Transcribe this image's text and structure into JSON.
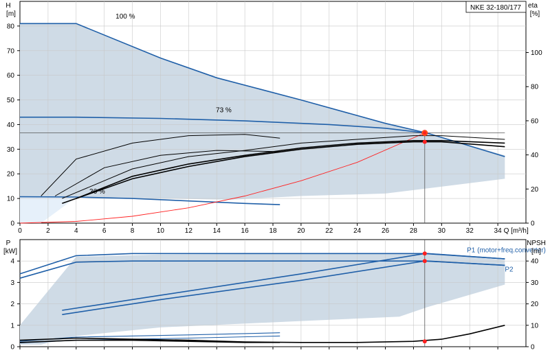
{
  "chart_data": [
    {
      "type": "line",
      "model_label": "NKE 32-180/177",
      "ylabel_left": "H",
      "ylabel_left_unit": "[m]",
      "ylabel_right": "eta",
      "ylabel_right_unit": "[%]",
      "xlabel": "Q [m³/h]",
      "xlim": [
        0,
        36
      ],
      "ylim": [
        0,
        90
      ],
      "x_ticks": [
        0,
        2,
        4,
        6,
        8,
        10,
        12,
        14,
        16,
        18,
        20,
        22,
        24,
        26,
        28,
        30,
        32,
        34
      ],
      "y_ticks": [
        0,
        10,
        20,
        30,
        40,
        50,
        60,
        70,
        80
      ],
      "y2_ticks": [
        0,
        20,
        40,
        60,
        80,
        100
      ],
      "y2_range": [
        0,
        130
      ],
      "grid": true,
      "speed_labels": [
        {
          "text": "100 %",
          "x": 7.5,
          "y": 83
        },
        {
          "text": "73 %",
          "x": 14.5,
          "y": 45
        },
        {
          "text": "36 %",
          "x": 5.5,
          "y": 12
        }
      ],
      "envelope_region": {
        "name": "operating range",
        "x": [
          0,
          4,
          10,
          14,
          20,
          26,
          29,
          34.5,
          34.5,
          26,
          20,
          15,
          10,
          6,
          4,
          1.5,
          0
        ],
        "y": [
          81,
          81,
          67,
          59,
          50,
          40.5,
          36.5,
          27.5,
          18,
          12,
          11,
          9.5,
          10,
          10.5,
          10.5,
          10.5,
          10.5
        ]
      },
      "series": [
        {
          "x": [
            0,
            4,
            10,
            14,
            20,
            26,
            29,
            34.5
          ],
          "y": [
            81,
            81,
            67,
            59,
            50,
            40.5,
            36.5,
            27
          ],
          "role": "head 100%"
        },
        {
          "x": [
            0,
            4,
            10,
            16,
            22,
            26,
            29
          ],
          "y": [
            43,
            43,
            42.5,
            41.5,
            40,
            38.5,
            36.5
          ],
          "role": "head 73%"
        },
        {
          "x": [
            0,
            4,
            8,
            12,
            16,
            18.5
          ],
          "y": [
            10.7,
            10.6,
            10,
            9,
            8,
            7.5
          ],
          "role": "head 36%"
        },
        {
          "x": [
            0,
            34.5
          ],
          "y": [
            36.6,
            36.6
          ],
          "role": "duty head line"
        },
        {
          "x": [
            0,
            4,
            8,
            12,
            16,
            20,
            24,
            28.8
          ],
          "y": [
            0,
            0.7,
            2.8,
            6.2,
            11,
            17.2,
            24.7,
            36.6
          ],
          "role": "system curve"
        },
        {
          "x": [
            1.5,
            4,
            8,
            12,
            16,
            18.5
          ],
          "y": [
            11,
            26,
            32.5,
            35.5,
            36,
            34.5
          ],
          "role": "eta 36%"
        },
        {
          "x": [
            2.5,
            6,
            10,
            14,
            18.5
          ],
          "y": [
            11,
            22.5,
            27.5,
            29.5,
            29
          ],
          "role": "eta 36% b"
        },
        {
          "x": [
            3,
            8,
            12,
            16,
            20,
            24,
            28,
            30,
            34.5
          ],
          "y": [
            10,
            22,
            27,
            29.5,
            32.5,
            34,
            35.5,
            35.5,
            34
          ],
          "role": "eta 73%"
        },
        {
          "x": [
            3,
            8,
            12,
            16,
            20,
            24,
            28,
            30,
            34.5
          ],
          "y": [
            8,
            18,
            23,
            27,
            30,
            32,
            33,
            33,
            31
          ],
          "role": "eta 100%"
        },
        {
          "x": [
            4,
            8,
            12,
            16,
            20,
            24,
            28,
            30,
            34.5
          ],
          "y": [
            10,
            19,
            24,
            27.5,
            30.5,
            32.5,
            33.5,
            33.5,
            32.5
          ],
          "role": "eta total"
        }
      ],
      "duty_point": {
        "x": 28.8,
        "y": 36.6
      },
      "markers": [
        {
          "x": 28.8,
          "y": 36.6
        },
        {
          "x": 28.8,
          "y": 33
        }
      ]
    },
    {
      "type": "line",
      "ylabel_left": "P",
      "ylabel_left_unit": "[kW]",
      "ylabel_right": "NPSH",
      "ylabel_right_unit": "[m]",
      "xlim": [
        0,
        36
      ],
      "ylim": [
        0,
        5
      ],
      "y_ticks": [
        0,
        1,
        2,
        3,
        4
      ],
      "y2_ticks": [
        0,
        10,
        20,
        30,
        40
      ],
      "y2_range": [
        0,
        50
      ],
      "grid": true,
      "series_labels": [
        {
          "text": "P1 (motor+freq.converter)",
          "x": 31.8,
          "y": 4.4
        },
        {
          "text": "P2",
          "x": 34.5,
          "y": 3.6
        }
      ],
      "envelope_region": {
        "name": "operating range",
        "x": [
          0,
          4,
          10,
          20,
          29,
          34.5,
          34.5,
          29,
          27,
          20,
          10,
          4,
          1.5,
          0
        ],
        "y": [
          1.0,
          4.2,
          4.3,
          4.35,
          4.35,
          4.05,
          2.9,
          1.85,
          1.4,
          1.2,
          0.9,
          0.5,
          0.1,
          0.1
        ]
      },
      "series": [
        {
          "name": "P1 (motor+freq.converter)",
          "x": [
            3,
            10,
            20,
            28.8,
            34.5
          ],
          "y": [
            1.7,
            2.4,
            3.4,
            4.35,
            4.1
          ],
          "role": "P1 duty"
        },
        {
          "name": "P2",
          "x": [
            3,
            10,
            20,
            28.8,
            34.5
          ],
          "y": [
            1.5,
            2.2,
            3.1,
            4.0,
            3.8
          ],
          "role": "P2 duty"
        },
        {
          "x": [
            0,
            4,
            8,
            20,
            29,
            34.5
          ],
          "y": [
            3.4,
            4.25,
            4.35,
            4.35,
            4.35,
            4.1
          ],
          "role": "P1 max"
        },
        {
          "x": [
            0,
            4,
            8,
            20,
            29,
            34.5
          ],
          "y": [
            3.2,
            3.95,
            4.0,
            4.0,
            4.0,
            3.8
          ],
          "role": "P2 max"
        },
        {
          "x": [
            0,
            4,
            12,
            18.5
          ],
          "y": [
            0.25,
            0.45,
            0.55,
            0.65
          ],
          "role": "P 36%"
        },
        {
          "x": [
            0,
            4,
            12,
            18.5
          ],
          "y": [
            0.18,
            0.3,
            0.4,
            0.5
          ],
          "role": "P 36% b"
        },
        {
          "x": [
            0,
            4,
            8,
            12,
            16,
            20,
            24,
            28,
            30,
            32,
            34.5
          ],
          "y2": [
            3,
            4,
            3.5,
            3,
            2.2,
            2,
            2,
            2.5,
            3.5,
            6,
            10
          ],
          "role": "NPSH"
        },
        {
          "x": [
            0,
            4,
            8,
            12,
            16,
            18.5
          ],
          "y2": [
            2,
            3,
            3,
            2.5,
            2,
            2
          ],
          "role": "NPSH 36%"
        }
      ],
      "markers_p": [
        {
          "x": 28.8,
          "y": 4.35
        },
        {
          "x": 28.8,
          "y": 4.0
        }
      ],
      "markers_npsh": [
        {
          "x": 28.8,
          "y2": 2.5
        }
      ]
    }
  ]
}
